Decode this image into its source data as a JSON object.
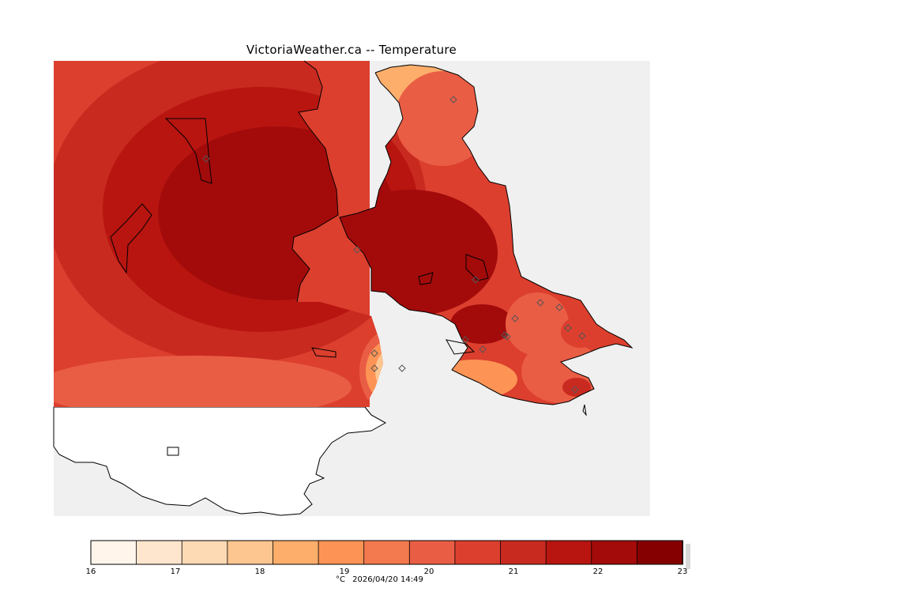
{
  "title": "VictoriaWeather.ca -- Temperature",
  "legend": {
    "ticks": [
      "16",
      "17",
      "18",
      "19",
      "20",
      "21",
      "22",
      "23"
    ],
    "colors": [
      "#fff5eb",
      "#fee6ce",
      "#fdd9b4",
      "#fdc590",
      "#fdae6b",
      "#fd9455",
      "#f37a4f",
      "#ea5d45",
      "#dc3f2e",
      "#c92a20",
      "#b81510",
      "#a30b0b",
      "#850000"
    ],
    "unit": "°C",
    "min": 16,
    "max": 23,
    "step": 0.5
  },
  "timestamp": "2026/04/20 14:49",
  "colors": {
    "background_sea": "#f0f0f0",
    "unanalysed_land": "#ffffff",
    "coast": "#000000",
    "station_marker": "#555555"
  },
  "stations_count": 17
}
